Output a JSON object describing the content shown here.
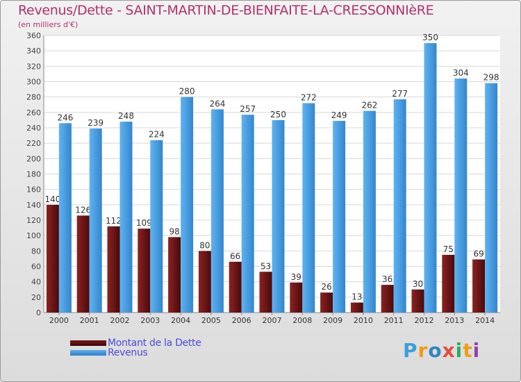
{
  "chart_data": {
    "type": "bar",
    "title": "Revenus/Dette - SAINT-MARTIN-DE-BIENFAITE-LA-CRESSONNIèRE",
    "subtitle": "(en milliers d'€)",
    "categories": [
      "2000",
      "2001",
      "2002",
      "2003",
      "2004",
      "2005",
      "2006",
      "2007",
      "2008",
      "2009",
      "2010",
      "2011",
      "2012",
      "2013",
      "2014"
    ],
    "series": [
      {
        "name": "Montant de la Dette",
        "color": "#7a1a1a",
        "values": [
          140,
          126,
          112,
          109,
          98,
          80,
          66,
          53,
          39,
          26,
          13,
          36,
          30,
          75,
          69
        ]
      },
      {
        "name": "Revenus",
        "color": "#4a9fe0",
        "values": [
          246,
          239,
          248,
          224,
          280,
          264,
          257,
          250,
          272,
          249,
          262,
          277,
          350,
          304,
          298
        ]
      }
    ],
    "ylim": [
      0,
      360
    ],
    "yticks": [
      0,
      20,
      40,
      60,
      80,
      100,
      120,
      140,
      160,
      180,
      200,
      220,
      240,
      260,
      280,
      300,
      320,
      340,
      360
    ],
    "grid": true,
    "legend": "bottom-left"
  },
  "logo": {
    "text": "Proxiti",
    "letters": [
      "P",
      "r",
      "o",
      "x",
      "i",
      "t",
      "i"
    ],
    "colors": [
      "#3aa0d8",
      "#f39c12",
      "#2e86c1",
      "#e74c3c",
      "#27ae60",
      "#f39c12",
      "#8e44ad"
    ]
  }
}
